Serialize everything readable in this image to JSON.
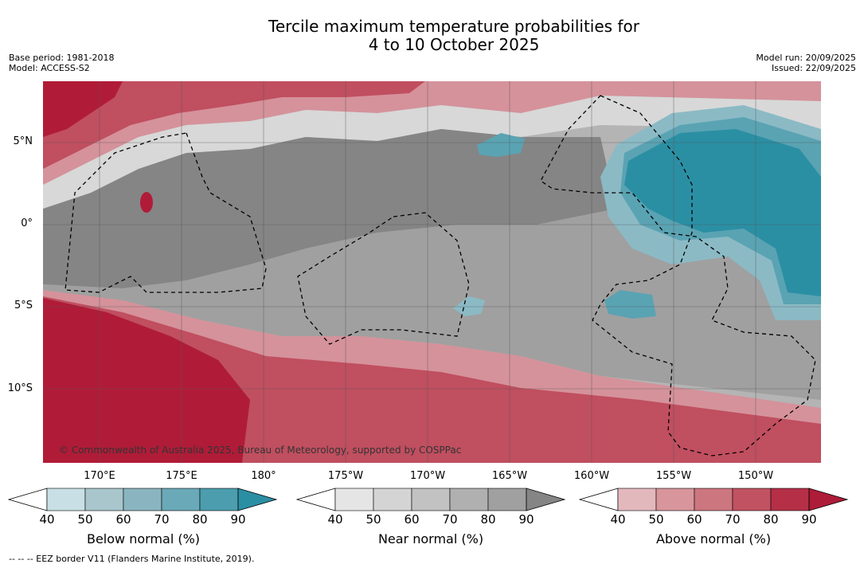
{
  "title_line1": "Tercile maximum temperature probabilities for",
  "title_line2": "4 to 10 October 2025",
  "base_period": "Base period: 1981-2018",
  "model": "Model: ACCESS-S2",
  "model_run": "Model run: 20/09/2025",
  "issued": "Issued: 22/09/2025",
  "copyright": "© Commonwealth of Australia 2025, Bureau of Meteorology, supported by COSPPac",
  "eez_note": "--  --  -- EEZ border V11 (Flanders Marine Institute, 2019).",
  "lat_labels": [
    "5°N",
    "0°",
    "5°S",
    "10°S"
  ],
  "lon_labels": [
    "170°E",
    "175°E",
    "180°",
    "175°W",
    "170°W",
    "165°W",
    "160°W",
    "155°W",
    "150°W"
  ],
  "colorbars": [
    {
      "label": "Below normal (%)",
      "ticks": [
        "40",
        "50",
        "60",
        "70",
        "80",
        "90"
      ],
      "colors": [
        "#ffffff",
        "#c8dfe5",
        "#a8c6cc",
        "#8ab5c0",
        "#6aa9b7",
        "#4c9dad",
        "#2b8fa4"
      ]
    },
    {
      "label": "Near normal (%)",
      "ticks": [
        "40",
        "50",
        "60",
        "70",
        "80",
        "90"
      ],
      "colors": [
        "#ffffff",
        "#e5e5e5",
        "#d4d4d4",
        "#c2c2c2",
        "#b0b0b0",
        "#a0a0a0",
        "#858585"
      ]
    },
    {
      "label": "Above normal (%)",
      "ticks": [
        "40",
        "50",
        "60",
        "70",
        "80",
        "90"
      ],
      "colors": [
        "#ffffff",
        "#e3b8bd",
        "#d8959c",
        "#cc767f",
        "#c15262",
        "#b52f47",
        "#ad1c38"
      ]
    }
  ],
  "map_colors": {
    "red_strong": "#b01c38",
    "red_mid": "#c04f60",
    "red_light": "#d5929b",
    "red_pale": "#e3b8bd",
    "grey_dark": "#858585",
    "grey_mid": "#a0a0a0",
    "grey_light": "#c2c2c2",
    "grey_pale": "#d8d8d8",
    "teal_strong": "#2b8fa4",
    "teal_mid": "#5aa3b3",
    "teal_light": "#8bbac5"
  }
}
